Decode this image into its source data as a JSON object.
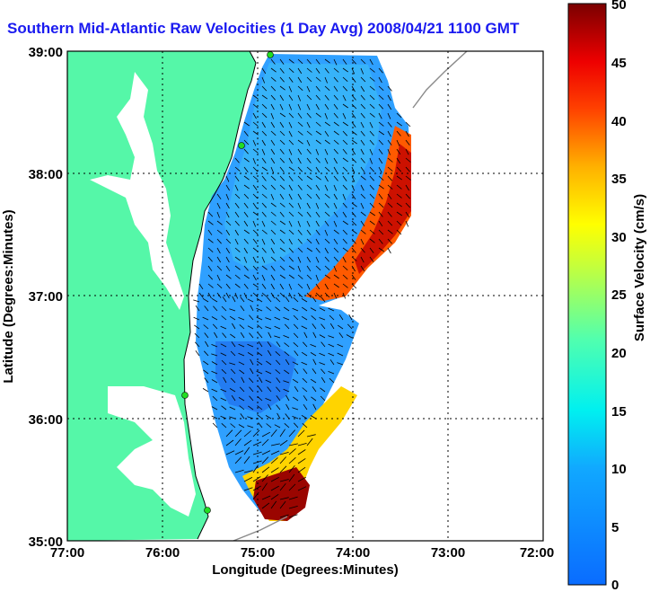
{
  "title": "Southern Mid-Atlantic Raw Velocities (1 Day Avg) 2008/04/21 1100 GMT",
  "x_axis": {
    "label": "Longitude (Degrees:Minutes)",
    "ticks": [
      "77:00",
      "76:00",
      "75:00",
      "74:00",
      "73:00",
      "72:00"
    ],
    "range": [
      -77,
      -72
    ]
  },
  "y_axis": {
    "label": "Latitude (Degrees:Minutes)",
    "ticks": [
      "39:00",
      "38:00",
      "37:00",
      "36:00",
      "35:00"
    ],
    "range": [
      35,
      39
    ]
  },
  "colorbar": {
    "label": "Surface Velocity (cm/s)",
    "ticks": [
      "50",
      "45",
      "40",
      "35",
      "30",
      "25",
      "20",
      "15",
      "10",
      "5",
      "0"
    ],
    "range": [
      0,
      50
    ]
  },
  "colors": {
    "land": "#55f7a8",
    "water": "#ffffff",
    "title": "#1a1af0",
    "station": "#22dd22"
  },
  "grid": true
}
